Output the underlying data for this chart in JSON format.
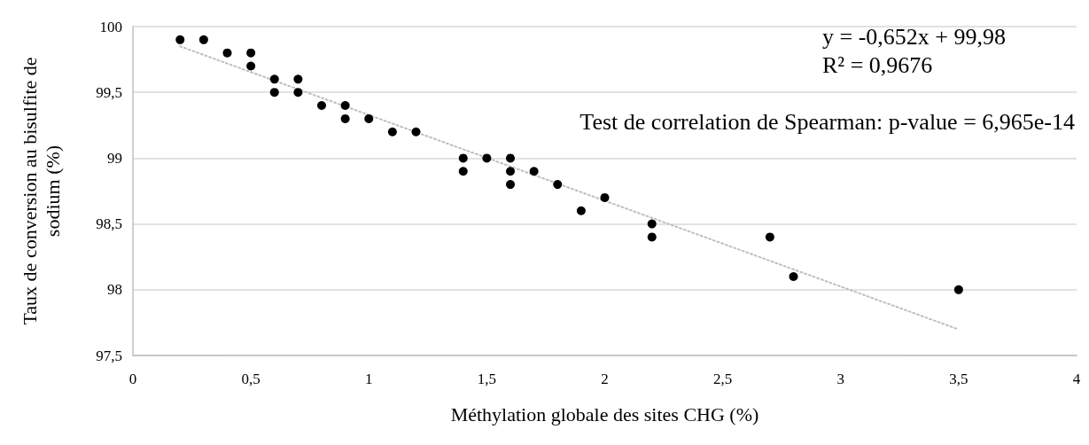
{
  "chart_data": {
    "type": "scatter",
    "xlabel": "Méthylation globale des sites CHG (%)",
    "ylabel": "Taux de conversion au bisulfite de sodium (%)",
    "xlim": [
      0,
      4
    ],
    "xticks": [
      0,
      {
        "value": 0.5,
        "label": "0,5"
      },
      1,
      {
        "value": 1.5,
        "label": "1,5"
      },
      2,
      {
        "value": 2.5,
        "label": "2,5"
      },
      3,
      {
        "value": 3.5,
        "label": "3,5"
      },
      4
    ],
    "ylim": [
      97.5,
      100
    ],
    "yticks": [
      {
        "value": 97.5,
        "label": "97,5"
      },
      98,
      {
        "value": 98.5,
        "label": "98,5"
      },
      99,
      {
        "value": 99.5,
        "label": "99,5"
      },
      100
    ],
    "grid": "y",
    "marker": "circle",
    "series": [
      {
        "color": "#000000",
        "x": [
          0.2,
          0.3,
          0.4,
          0.5,
          0.5,
          0.6,
          0.7,
          0.6,
          0.7,
          0.8,
          0.9,
          0.9,
          1.0,
          1.1,
          1.2,
          1.4,
          1.5,
          1.6,
          1.4,
          1.6,
          1.7,
          1.6,
          1.8,
          1.9,
          2.0,
          2.2,
          2.2,
          2.7,
          2.8,
          3.5
        ],
        "values": [
          99.9,
          99.9,
          99.8,
          99.8,
          99.7,
          99.6,
          99.6,
          99.5,
          99.5,
          99.4,
          99.4,
          99.3,
          99.3,
          99.2,
          99.2,
          99.0,
          99.0,
          99.0,
          98.9,
          98.9,
          98.9,
          98.8,
          98.8,
          98.6,
          98.7,
          98.5,
          98.4,
          98.4,
          98.1,
          98.0
        ]
      },
      {
        "type": "line",
        "color": "#bfbfbf",
        "line_style": "dotted",
        "marker": "none",
        "x": [
          0.2,
          3.5
        ],
        "values": [
          99.85,
          97.698
        ]
      }
    ],
    "annotations": [
      "y = -0,652x + 99,98",
      "R² = 0,9676",
      "Test de correlation de Spearman: p-value = 6,965e-14"
    ]
  }
}
